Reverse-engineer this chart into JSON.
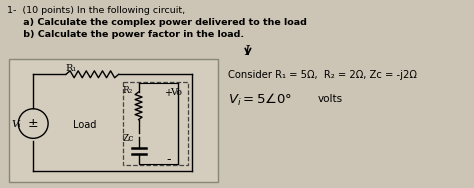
{
  "bg_color": "#ccc4b4",
  "circuit_bg": "#d4ccbc",
  "title_line1": "1-  (10 points) In the following circuit,",
  "title_line2": "     a) Calculate the complex power delivered to the load",
  "title_line3": "     b) Calculate the power factor in the load.",
  "consider_text": "Consider R₁ = 5Ω,  R₂ = 2Ω, Zc = -j2Ω",
  "current_label": "I",
  "load_label": "Load",
  "R1_label": "R₁",
  "R2_label": "R₂",
  "Zc_label": "Zc",
  "Vo_label": "Vo",
  "Vi_label": "Vᵢ",
  "plus_sign": "+",
  "minus_sign": "-",
  "volts_text": "volts"
}
